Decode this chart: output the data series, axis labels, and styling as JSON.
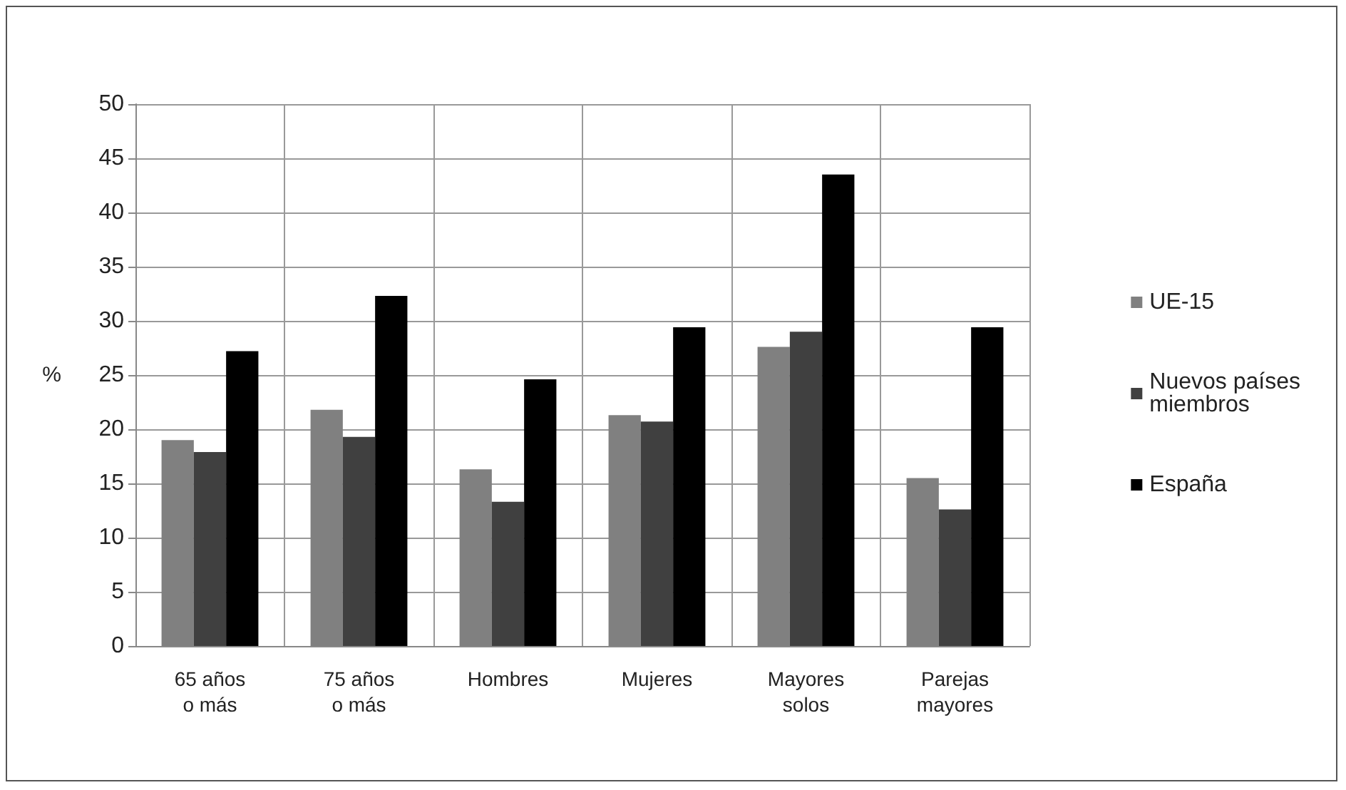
{
  "chart_data": {
    "type": "bar",
    "ylabel": "%",
    "categories": [
      "65 años\no más",
      "75 años\no más",
      "Hombres",
      "Mujeres",
      "Mayores\nsolos",
      "Parejas\nmayores"
    ],
    "series": [
      {
        "name": "UE-15",
        "color": "#808080",
        "values": [
          19.0,
          21.8,
          16.3,
          21.3,
          27.6,
          15.5
        ]
      },
      {
        "name": "Nuevos países\nmiembros",
        "color": "#404040",
        "values": [
          17.9,
          19.3,
          13.3,
          20.7,
          29.0,
          12.6
        ]
      },
      {
        "name": "España",
        "color": "#000000",
        "values": [
          27.2,
          32.3,
          24.6,
          29.4,
          43.5,
          29.4
        ]
      }
    ],
    "ylim": [
      0,
      50
    ],
    "yticks": [
      0,
      5,
      10,
      15,
      20,
      25,
      30,
      35,
      40,
      45,
      50
    ],
    "grid": true,
    "legend": "right"
  }
}
